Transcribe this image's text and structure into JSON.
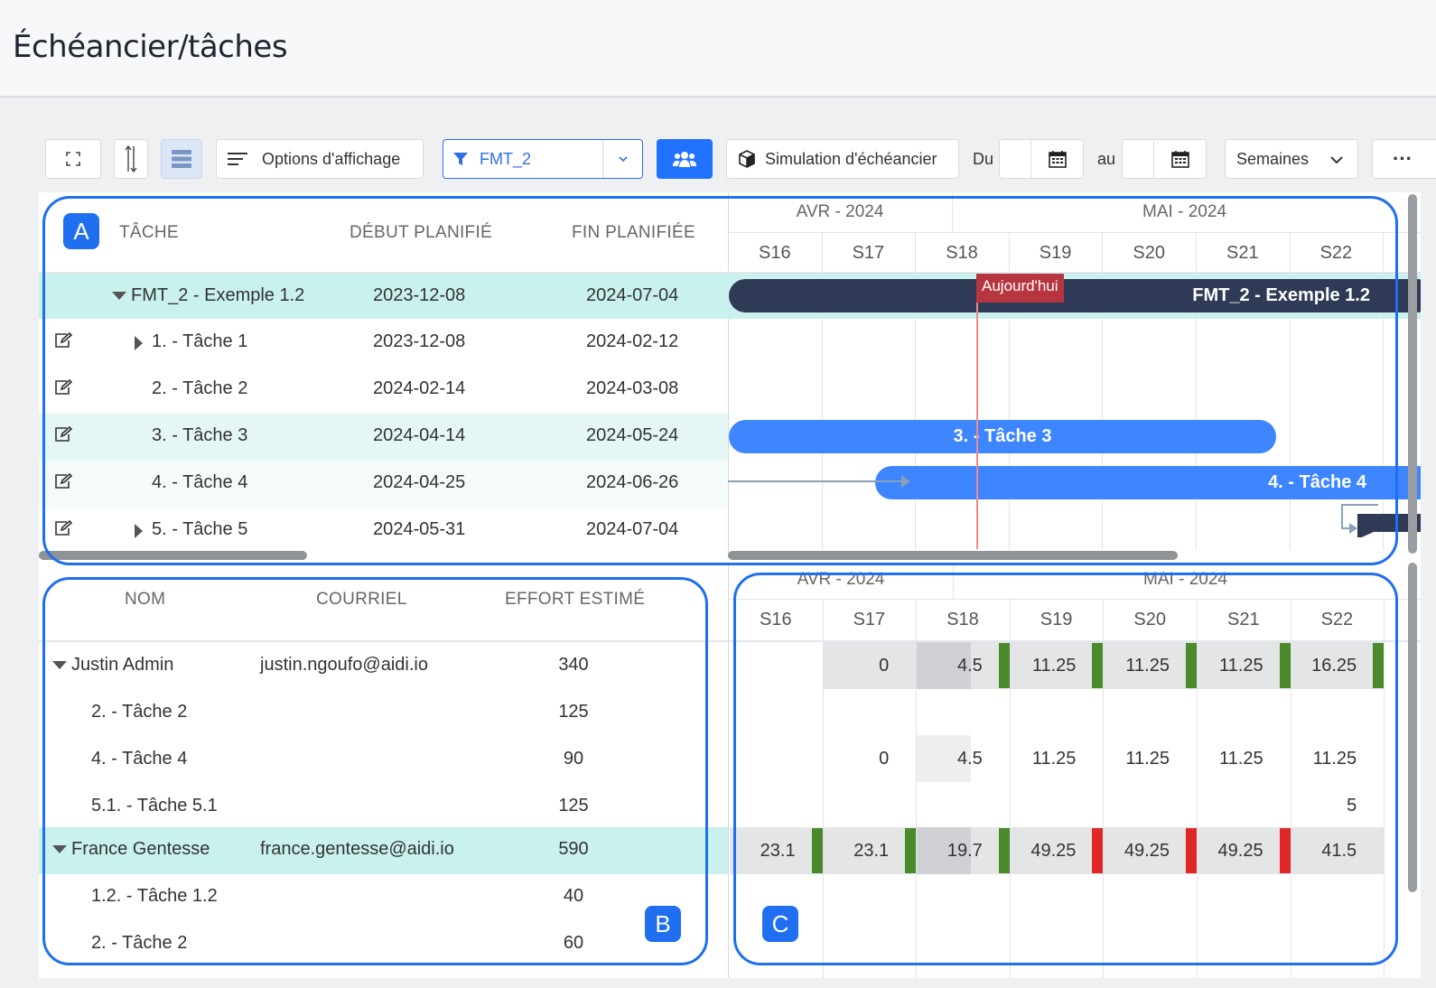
{
  "page": {
    "title": "Échéancier/tâches"
  },
  "toolbar": {
    "display_options": "Options d'affichage",
    "filter_value": "FMT_2",
    "simulation": "Simulation d'échéancier",
    "from_label": "Du",
    "to_label": "au",
    "scale_value": "Semaines",
    "more": "···"
  },
  "gantt": {
    "badge": "A",
    "columns": {
      "task": "TÂCHE",
      "start": "DÉBUT PLANIFIÉ",
      "end": "FIN PLANIFIÉE"
    },
    "months": [
      "AVR - 2024",
      "MAI - 2024"
    ],
    "weeks": [
      "S16",
      "S17",
      "S18",
      "S19",
      "S20",
      "S21",
      "S22"
    ],
    "today_label": "Aujourd'hui",
    "rows": [
      {
        "name": "FMT_2 - Exemple 1.2",
        "start": "2023-12-08",
        "end": "2024-07-04"
      },
      {
        "name": "1. - Tâche 1",
        "start": "2023-12-08",
        "end": "2024-02-12"
      },
      {
        "name": "2. - Tâche 2",
        "start": "2024-02-14",
        "end": "2024-03-08"
      },
      {
        "name": "3. - Tâche 3",
        "start": "2024-04-14",
        "end": "2024-05-24"
      },
      {
        "name": "4. - Tâche 4",
        "start": "2024-04-25",
        "end": "2024-06-26"
      },
      {
        "name": "5. - Tâche 5",
        "start": "2024-05-31",
        "end": "2024-07-04"
      }
    ],
    "bars": {
      "project": "FMT_2 - Exemple 1.2",
      "task3": "3. - Tâche 3",
      "task4": "4. - Tâche 4"
    }
  },
  "resources": {
    "badge": "B",
    "columns": {
      "name": "NOM",
      "email": "COURRIEL",
      "effort": "EFFORT ESTIMÉ"
    },
    "rows": [
      {
        "name": "Justin Admin",
        "email": "justin.ngoufo@aidi.io",
        "effort": "340"
      },
      {
        "name": "2. - Tâche 2",
        "email": "",
        "effort": "125"
      },
      {
        "name": "4. - Tâche 4",
        "email": "",
        "effort": "90"
      },
      {
        "name": "5.1. - Tâche 5.1",
        "email": "",
        "effort": "125"
      },
      {
        "name": "France Gentesse",
        "email": "france.gentesse@aidi.io",
        "effort": "590"
      },
      {
        "name": "1.2. - Tâche 1.2",
        "email": "",
        "effort": "40"
      },
      {
        "name": "2. - Tâche 2",
        "email": "",
        "effort": "60"
      }
    ]
  },
  "histogram": {
    "badge": "C",
    "months": [
      "AVR - 2024",
      "MAI - 2024"
    ],
    "weeks": [
      "S16",
      "S17",
      "S18",
      "S19",
      "S20",
      "S21",
      "S22"
    ],
    "rows": [
      {
        "values": [
          "",
          "0",
          "4.5",
          "11.25",
          "11.25",
          "11.25",
          "16.25"
        ],
        "flags": [
          "",
          "",
          "green",
          "green",
          "green",
          "green",
          "green"
        ]
      },
      {
        "values": [
          "",
          "",
          "",
          "",
          "",
          "",
          ""
        ],
        "flags": [
          "",
          "",
          "",
          "",
          "",
          "",
          ""
        ]
      },
      {
        "values": [
          "",
          "0",
          "4.5",
          "11.25",
          "11.25",
          "11.25",
          "11.25"
        ],
        "flags": [
          "",
          "",
          "",
          "",
          "",
          "",
          ""
        ]
      },
      {
        "values": [
          "",
          "",
          "",
          "",
          "",
          "",
          "5"
        ],
        "flags": [
          "",
          "",
          "",
          "",
          "",
          "",
          ""
        ]
      },
      {
        "values": [
          "23.1",
          "23.1",
          "19.7",
          "49.25",
          "49.25",
          "49.25",
          "41.5"
        ],
        "flags": [
          "green",
          "green",
          "green",
          "red",
          "red",
          "red",
          ""
        ]
      },
      {
        "values": [
          "",
          "",
          "",
          "",
          "",
          "",
          ""
        ],
        "flags": [
          "",
          "",
          "",
          "",
          "",
          "",
          ""
        ]
      },
      {
        "values": [
          "",
          "",
          "",
          "",
          "",
          "",
          ""
        ],
        "flags": [
          "",
          "",
          "",
          "",
          "",
          "",
          ""
        ]
      }
    ],
    "colors": {
      "green": "#4a8a2a",
      "red": "#e02626"
    }
  }
}
